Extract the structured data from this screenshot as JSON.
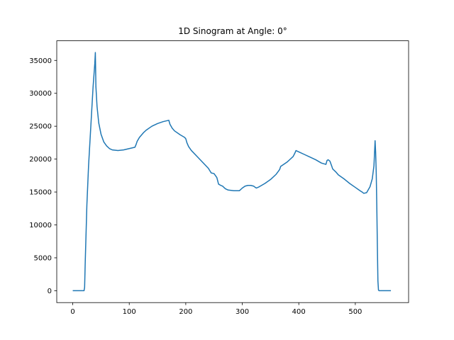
{
  "chart_data": {
    "type": "line",
    "title": "1D Sinogram at Angle: 0°",
    "xlabel": "",
    "ylabel": "",
    "xlim": [
      -28.3,
      594.3
    ],
    "ylim": [
      -1808,
      37981
    ],
    "xticks": [
      0,
      100,
      200,
      300,
      400,
      500
    ],
    "yticks": [
      0,
      5000,
      10000,
      15000,
      20000,
      25000,
      30000,
      35000
    ],
    "grid": false,
    "line_color": "#1f77b4",
    "series": [
      {
        "x": [
          0,
          10,
          20,
          21,
          22,
          25,
          28,
          32,
          36,
          39,
          40,
          41,
          43,
          46,
          50,
          55,
          60,
          65,
          70,
          80,
          90,
          100,
          110,
          112,
          114,
          118,
          125,
          130,
          140,
          150,
          160,
          170,
          172,
          176,
          180,
          190,
          198,
          200,
          202,
          205,
          210,
          220,
          230,
          240,
          245,
          250,
          255,
          258,
          262,
          265,
          270,
          275,
          285,
          295,
          300,
          305,
          310,
          315,
          320,
          323,
          325,
          330,
          340,
          350,
          360,
          366,
          368,
          375,
          380,
          385,
          390,
          393,
          395,
          400,
          410,
          420,
          430,
          440,
          448,
          450,
          452,
          455,
          458,
          460,
          465,
          470,
          480,
          490,
          500,
          505,
          510,
          512,
          515,
          520,
          526,
          530,
          533,
          535,
          536,
          537,
          538,
          539,
          540,
          541,
          542,
          543,
          545,
          548,
          555,
          560,
          563
        ],
        "y": [
          0,
          0,
          0,
          500,
          4000,
          13000,
          19000,
          25000,
          31000,
          34500,
          36200,
          31000,
          28000,
          25500,
          23800,
          22600,
          22000,
          21600,
          21400,
          21300,
          21400,
          21600,
          21800,
          22200,
          22700,
          23300,
          24000,
          24400,
          25000,
          25400,
          25700,
          25900,
          25300,
          24700,
          24300,
          23700,
          23300,
          23100,
          22500,
          21900,
          21300,
          20400,
          19500,
          18600,
          17900,
          17800,
          17200,
          16200,
          16000,
          15900,
          15500,
          15300,
          15200,
          15200,
          15600,
          15900,
          16000,
          16000,
          15900,
          15700,
          15600,
          15800,
          16300,
          16900,
          17700,
          18400,
          18900,
          19300,
          19600,
          20000,
          20400,
          20900,
          21300,
          21100,
          20700,
          20300,
          19900,
          19400,
          19200,
          19800,
          19900,
          19700,
          19000,
          18500,
          18100,
          17600,
          17000,
          16300,
          15700,
          15400,
          15100,
          15000,
          14800,
          14900,
          15800,
          17000,
          19000,
          22800,
          21000,
          18000,
          13000,
          7000,
          1500,
          100,
          0,
          0,
          0,
          0,
          0,
          0,
          0
        ]
      }
    ]
  }
}
